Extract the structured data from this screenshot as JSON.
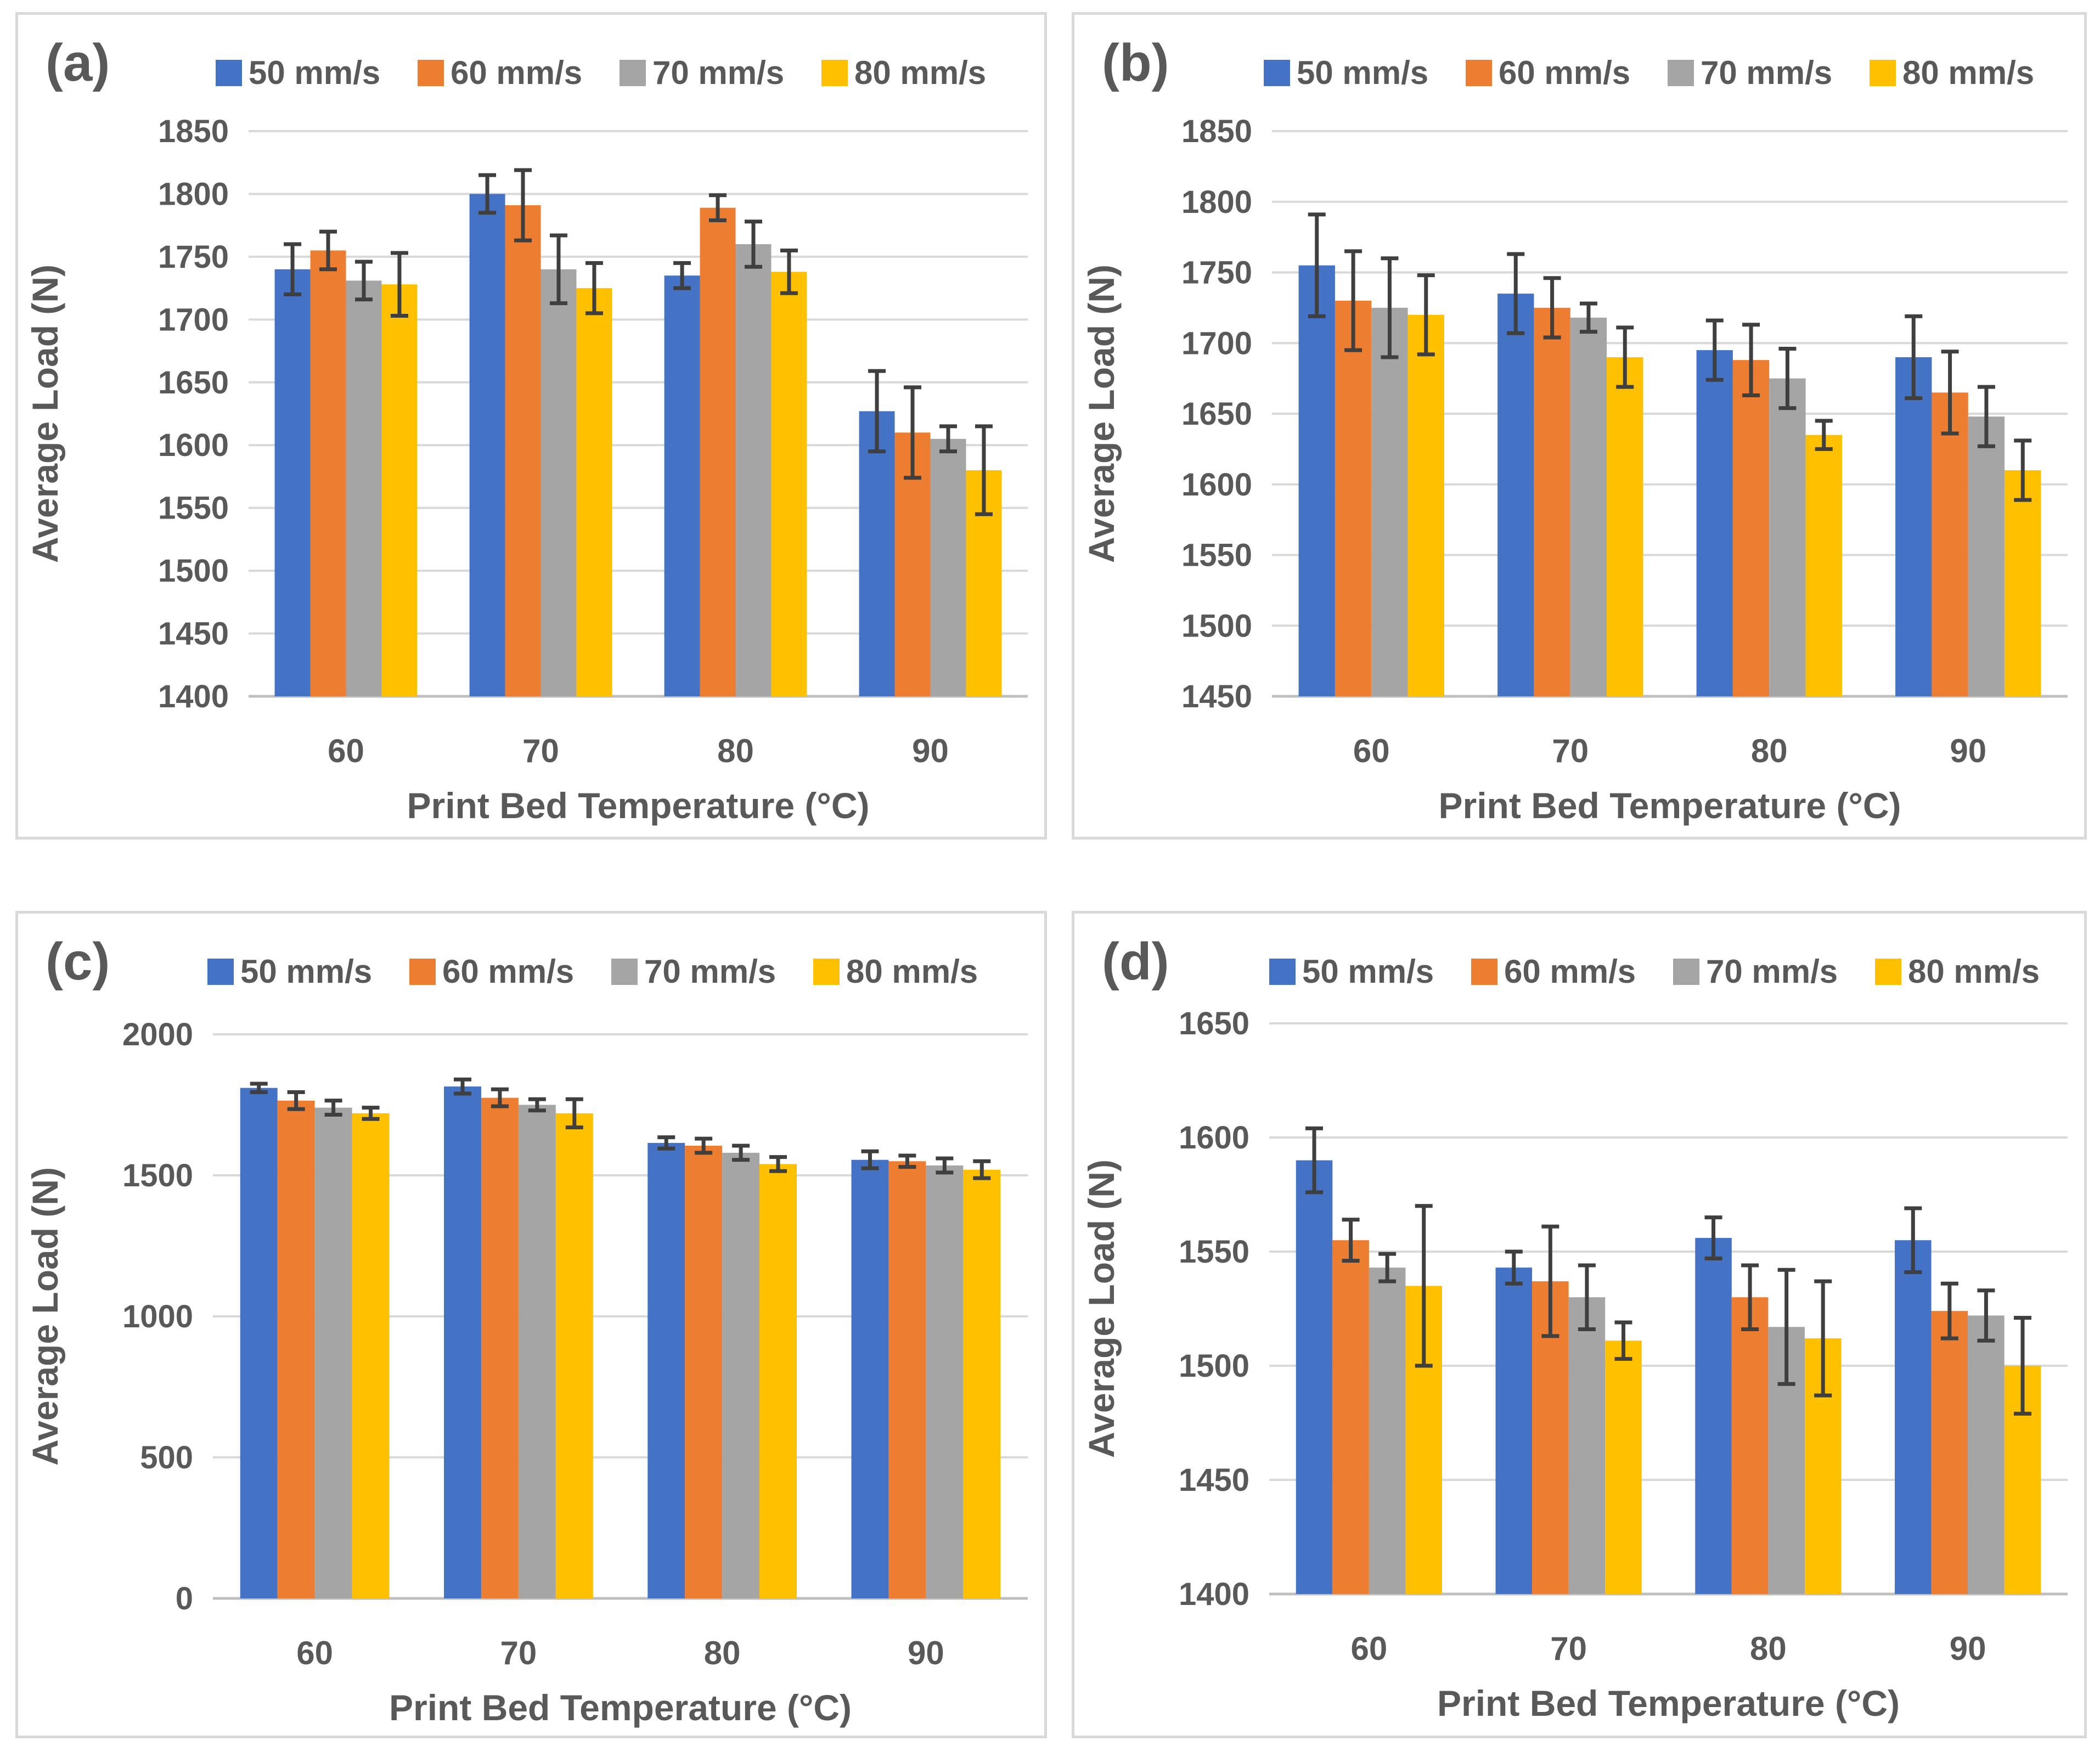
{
  "colors": {
    "grid": "#d9d9d9",
    "axis": "#bfbfbf",
    "text": "#595959",
    "error": "#3f3f3f"
  },
  "chart_data": [
    {
      "type": "bar",
      "panel_label": "(a)",
      "categories": [
        "60",
        "70",
        "80",
        "90"
      ],
      "xlabel": "Print Bed Temperature (°C)",
      "ylabel": "Average Load (N)",
      "ylim": [
        1400,
        1850
      ],
      "yticks": [
        1400,
        1450,
        1500,
        1550,
        1600,
        1650,
        1700,
        1750,
        1800,
        1850
      ],
      "legend_position": "top",
      "series": [
        {
          "name": "50 mm/s",
          "color": "#4472c4",
          "values": [
            1740,
            1800,
            1735,
            1627
          ],
          "errors": [
            20,
            15,
            10,
            32
          ]
        },
        {
          "name": "60 mm/s",
          "color": "#ed7d31",
          "values": [
            1755,
            1791,
            1789,
            1610
          ],
          "errors": [
            15,
            28,
            10,
            36
          ]
        },
        {
          "name": "70 mm/s",
          "color": "#a5a5a5",
          "values": [
            1731,
            1740,
            1760,
            1605
          ],
          "errors": [
            15,
            27,
            18,
            10
          ]
        },
        {
          "name": "80 mm/s",
          "color": "#ffc000",
          "values": [
            1728,
            1725,
            1738,
            1580
          ],
          "errors": [
            25,
            20,
            17,
            35
          ]
        }
      ]
    },
    {
      "type": "bar",
      "panel_label": "(b)",
      "categories": [
        "60",
        "70",
        "80",
        "90"
      ],
      "xlabel": "Print Bed Temperature (°C)",
      "ylabel": "Average Load (N)",
      "ylim": [
        1450,
        1850
      ],
      "yticks": [
        1450,
        1500,
        1550,
        1600,
        1650,
        1700,
        1750,
        1800,
        1850
      ],
      "legend_position": "top",
      "series": [
        {
          "name": "50 mm/s",
          "color": "#4472c4",
          "values": [
            1755,
            1735,
            1695,
            1690
          ],
          "errors": [
            36,
            28,
            21,
            29
          ]
        },
        {
          "name": "60 mm/s",
          "color": "#ed7d31",
          "values": [
            1730,
            1725,
            1688,
            1665
          ],
          "errors": [
            35,
            21,
            25,
            29
          ]
        },
        {
          "name": "70 mm/s",
          "color": "#a5a5a5",
          "values": [
            1725,
            1718,
            1675,
            1648
          ],
          "errors": [
            35,
            10,
            21,
            21
          ]
        },
        {
          "name": "80 mm/s",
          "color": "#ffc000",
          "values": [
            1720,
            1690,
            1635,
            1610
          ],
          "errors": [
            28,
            21,
            10,
            21
          ]
        }
      ]
    },
    {
      "type": "bar",
      "panel_label": "(c)",
      "categories": [
        "60",
        "70",
        "80",
        "90"
      ],
      "xlabel": "Print Bed Temperature (°C)",
      "ylabel": "Average Load (N)",
      "ylim": [
        0,
        2000
      ],
      "yticks": [
        0,
        500,
        1000,
        1500,
        2000
      ],
      "legend_position": "top",
      "series": [
        {
          "name": "50 mm/s",
          "color": "#4472c4",
          "values": [
            1810,
            1815,
            1615,
            1555
          ],
          "errors": [
            15,
            25,
            20,
            30
          ]
        },
        {
          "name": "60 mm/s",
          "color": "#ed7d31",
          "values": [
            1765,
            1775,
            1605,
            1550
          ],
          "errors": [
            30,
            30,
            25,
            20
          ]
        },
        {
          "name": "70 mm/s",
          "color": "#a5a5a5",
          "values": [
            1740,
            1750,
            1580,
            1535
          ],
          "errors": [
            25,
            20,
            25,
            25
          ]
        },
        {
          "name": "80 mm/s",
          "color": "#ffc000",
          "values": [
            1720,
            1720,
            1540,
            1520
          ],
          "errors": [
            20,
            50,
            25,
            30
          ]
        }
      ]
    },
    {
      "type": "bar",
      "panel_label": "(d)",
      "categories": [
        "60",
        "70",
        "80",
        "90"
      ],
      "xlabel": "Print Bed Temperature (°C)",
      "ylabel": "Average Load (N)",
      "ylim": [
        1400,
        1650
      ],
      "yticks": [
        1400,
        1450,
        1500,
        1550,
        1600,
        1650
      ],
      "legend_position": "top",
      "series": [
        {
          "name": "50 mm/s",
          "color": "#4472c4",
          "values": [
            1590,
            1543,
            1556,
            1555
          ],
          "errors": [
            14,
            7,
            9,
            14
          ]
        },
        {
          "name": "60 mm/s",
          "color": "#ed7d31",
          "values": [
            1555,
            1537,
            1530,
            1524
          ],
          "errors": [
            9,
            24,
            14,
            12
          ]
        },
        {
          "name": "70 mm/s",
          "color": "#a5a5a5",
          "values": [
            1543,
            1530,
            1517,
            1522
          ],
          "errors": [
            6,
            14,
            25,
            11
          ]
        },
        {
          "name": "80 mm/s",
          "color": "#ffc000",
          "values": [
            1535,
            1511,
            1512,
            1500
          ],
          "errors": [
            35,
            8,
            25,
            21
          ]
        }
      ]
    }
  ]
}
